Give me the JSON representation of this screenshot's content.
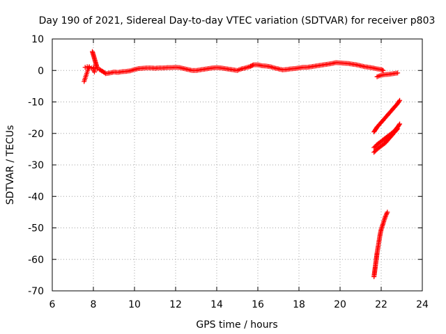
{
  "chart_data": {
    "type": "scatter",
    "title": "Day 190 of 2021, Sidereal Day-to-day VTEC variation (SDTVAR) for receiver p803",
    "xlabel": "GPS time / hours",
    "ylabel": "SDTVAR / TECUs",
    "xlim": [
      6,
      24
    ],
    "ylim": [
      -70,
      10
    ],
    "xticks": [
      6,
      8,
      10,
      12,
      14,
      16,
      18,
      20,
      22,
      24
    ],
    "yticks": [
      -70,
      -60,
      -50,
      -40,
      -30,
      -20,
      -10,
      0,
      10
    ],
    "grid": true,
    "marker": "+",
    "colors": {
      "series": "#ff0000",
      "axes": "#000000",
      "grid": "#a0a0a0"
    },
    "series": [
      {
        "values": [
          [
            7.55,
            -3.5
          ],
          [
            7.6,
            -2.5
          ],
          [
            7.65,
            -1.5
          ],
          [
            7.7,
            -0.5
          ],
          [
            7.75,
            0.5
          ],
          [
            7.8,
            1.2
          ],
          [
            7.6,
            1.0
          ],
          [
            7.7,
            1.2
          ],
          [
            7.8,
            1.0
          ],
          [
            7.9,
            0.8
          ],
          [
            8.0,
            1.0
          ],
          [
            8.05,
            -0.5
          ],
          [
            7.95,
            6.0
          ],
          [
            8.2,
            0.5
          ],
          [
            8.3,
            0.3
          ],
          [
            8.5,
            -0.5
          ],
          [
            8.6,
            -1.0
          ],
          [
            8.8,
            -0.8
          ],
          [
            9.0,
            -0.5
          ],
          [
            9.2,
            -0.6
          ],
          [
            9.4,
            -0.4
          ],
          [
            9.6,
            -0.3
          ],
          [
            9.8,
            -0.1
          ],
          [
            10.0,
            0.3
          ],
          [
            10.2,
            0.6
          ],
          [
            10.4,
            0.7
          ],
          [
            10.6,
            0.8
          ],
          [
            10.8,
            0.8
          ],
          [
            11.0,
            0.7
          ],
          [
            11.2,
            0.8
          ],
          [
            11.4,
            0.8
          ],
          [
            11.6,
            0.9
          ],
          [
            11.8,
            0.9
          ],
          [
            12.0,
            1.0
          ],
          [
            12.2,
            0.9
          ],
          [
            12.4,
            0.6
          ],
          [
            12.6,
            0.3
          ],
          [
            12.8,
            0.0
          ],
          [
            13.0,
            0.0
          ],
          [
            13.2,
            0.2
          ],
          [
            13.4,
            0.4
          ],
          [
            13.6,
            0.6
          ],
          [
            13.8,
            0.8
          ],
          [
            14.0,
            0.9
          ],
          [
            14.2,
            0.8
          ],
          [
            14.4,
            0.6
          ],
          [
            14.6,
            0.4
          ],
          [
            14.8,
            0.2
          ],
          [
            15.0,
            0.0
          ],
          [
            15.2,
            0.5
          ],
          [
            15.4,
            0.8
          ],
          [
            15.6,
            1.2
          ],
          [
            15.8,
            1.8
          ],
          [
            16.0,
            1.8
          ],
          [
            16.2,
            1.5
          ],
          [
            16.4,
            1.4
          ],
          [
            16.6,
            1.2
          ],
          [
            16.8,
            0.8
          ],
          [
            17.0,
            0.5
          ],
          [
            17.2,
            0.2
          ],
          [
            17.4,
            0.3
          ],
          [
            17.6,
            0.5
          ],
          [
            17.8,
            0.6
          ],
          [
            18.0,
            0.8
          ],
          [
            18.2,
            1.0
          ],
          [
            18.4,
            1.0
          ],
          [
            18.6,
            1.2
          ],
          [
            18.8,
            1.4
          ],
          [
            19.0,
            1.6
          ],
          [
            19.2,
            1.8
          ],
          [
            19.4,
            2.0
          ],
          [
            19.6,
            2.2
          ],
          [
            19.8,
            2.5
          ],
          [
            20.0,
            2.4
          ],
          [
            20.2,
            2.3
          ],
          [
            20.4,
            2.2
          ],
          [
            20.6,
            2.0
          ],
          [
            20.8,
            1.8
          ],
          [
            21.0,
            1.5
          ],
          [
            21.2,
            1.2
          ],
          [
            21.4,
            1.0
          ],
          [
            21.6,
            0.8
          ],
          [
            21.8,
            0.5
          ],
          [
            22.0,
            0.3
          ],
          [
            22.1,
            0.0
          ],
          [
            21.8,
            -2.0
          ],
          [
            22.0,
            -1.5
          ],
          [
            22.2,
            -1.3
          ],
          [
            22.4,
            -1.2
          ],
          [
            22.6,
            -1.0
          ],
          [
            22.8,
            -0.8
          ],
          [
            21.65,
            -19.5
          ],
          [
            21.8,
            -18.0
          ],
          [
            22.0,
            -16.5
          ],
          [
            22.2,
            -15.0
          ],
          [
            22.4,
            -13.5
          ],
          [
            22.6,
            -12.0
          ],
          [
            22.8,
            -10.5
          ],
          [
            22.9,
            -9.5
          ],
          [
            21.65,
            -24.5
          ],
          [
            21.8,
            -23.5
          ],
          [
            22.0,
            -22.5
          ],
          [
            22.2,
            -21.5
          ],
          [
            22.4,
            -20.5
          ],
          [
            22.6,
            -19.5
          ],
          [
            22.8,
            -18.0
          ],
          [
            22.9,
            -17.0
          ],
          [
            21.65,
            -26.0
          ],
          [
            21.8,
            -25.0
          ],
          [
            22.0,
            -24.0
          ],
          [
            22.2,
            -23.0
          ],
          [
            22.4,
            -21.5
          ],
          [
            22.6,
            -20.0
          ],
          [
            22.8,
            -18.5
          ],
          [
            21.65,
            -65.5
          ],
          [
            21.7,
            -63.0
          ],
          [
            21.75,
            -60.5
          ],
          [
            21.8,
            -58.0
          ],
          [
            21.85,
            -56.0
          ],
          [
            21.9,
            -54.0
          ],
          [
            21.95,
            -52.0
          ],
          [
            22.0,
            -50.5
          ],
          [
            22.1,
            -48.5
          ],
          [
            22.2,
            -46.5
          ],
          [
            22.3,
            -45.0
          ]
        ]
      }
    ]
  }
}
